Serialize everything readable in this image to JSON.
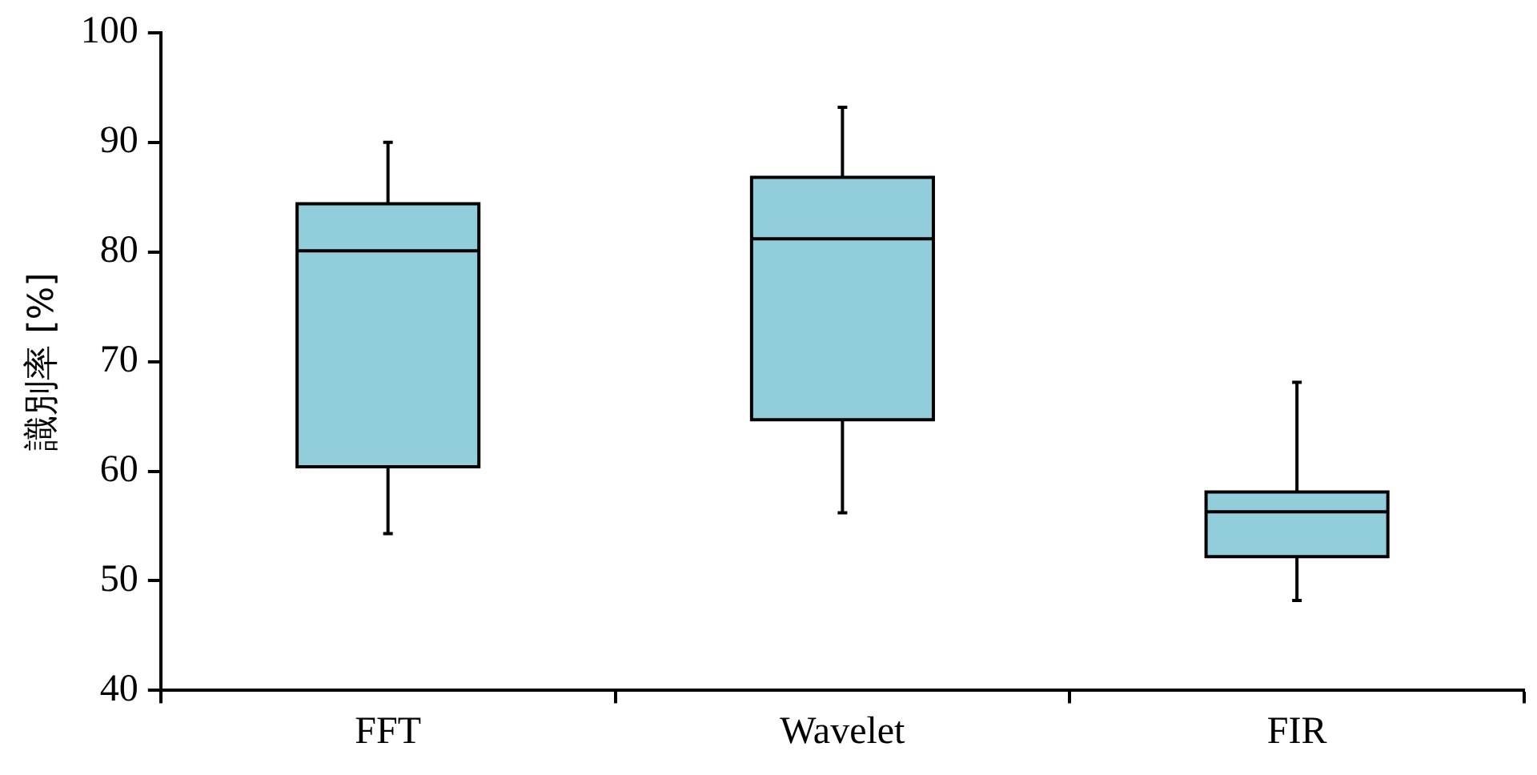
{
  "chart_data": {
    "type": "box",
    "ylabel": "識別率 [%]",
    "categories": [
      "FFT",
      "Wavelet",
      "FIR"
    ],
    "ylim": [
      40,
      100
    ],
    "yticks": [
      40,
      50,
      60,
      70,
      80,
      90,
      100
    ],
    "grid": false,
    "legend": false,
    "series": [
      {
        "color": "#92cddc",
        "boxes": [
          {
            "low": 54.3,
            "q1": 60.4,
            "median": 80.1,
            "q3": 84.4,
            "high": 90
          },
          {
            "low": 56.2,
            "q1": 64.7,
            "median": 81.2,
            "q3": 86.8,
            "high": 93.2
          },
          {
            "low": 48.2,
            "q1": 52.2,
            "median": 56.3,
            "q3": 58.1,
            "high": 68.1
          }
        ]
      }
    ]
  }
}
